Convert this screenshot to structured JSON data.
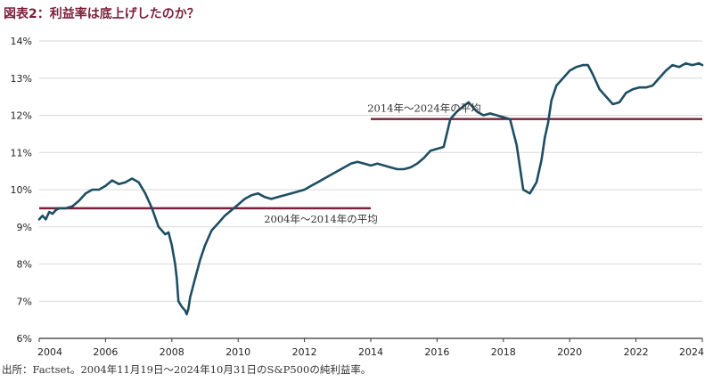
{
  "title": "図表2：利益率は底上げしたのか？",
  "source": "出所：Factset。2004年11月19日～2024年10月31日のS&P500の純利益率。",
  "colors": {
    "series": "#1d4e63",
    "average": "#7b1f3a",
    "grid": "#d9d9d9",
    "axis": "#333333"
  },
  "chart_data": {
    "type": "line",
    "title": "図表2：利益率は底上げしたのか？",
    "xlabel": "",
    "ylabel": "",
    "xlim": [
      2004,
      2024
    ],
    "ylim": [
      6,
      14
    ],
    "grid": "horizontal",
    "x_ticks": [
      "2004",
      "2006",
      "2008",
      "2010",
      "2012",
      "2014",
      "2016",
      "2018",
      "2020",
      "2022",
      "2024"
    ],
    "y_ticks": [
      "6%",
      "7%",
      "8%",
      "9%",
      "10%",
      "11%",
      "12%",
      "13%",
      "14%"
    ],
    "series": [
      {
        "values_x": [
          2004.0,
          2004.1,
          2004.2,
          2004.3,
          2004.4,
          2004.5,
          2004.6,
          2004.8,
          2005.0,
          2005.2,
          2005.4,
          2005.6,
          2005.8,
          2006.0,
          2006.2,
          2006.4,
          2006.6,
          2006.8,
          2007.0,
          2007.2,
          2007.4,
          2007.6,
          2007.8,
          2007.9,
          2008.0,
          2008.1,
          2008.15,
          2008.2,
          2008.3,
          2008.4,
          2008.45,
          2008.5,
          2008.55,
          2008.7,
          2008.85,
          2009.0,
          2009.2,
          2009.4,
          2009.6,
          2009.8,
          2010.0,
          2010.2,
          2010.4,
          2010.6,
          2010.8,
          2011.0,
          2011.2,
          2011.4,
          2011.6,
          2011.8,
          2012.0,
          2012.2,
          2012.4,
          2012.6,
          2012.8,
          2013.0,
          2013.2,
          2013.4,
          2013.6,
          2013.8,
          2014.0,
          2014.2,
          2014.4,
          2014.6,
          2014.8,
          2015.0,
          2015.2,
          2015.4,
          2015.6,
          2015.8,
          2016.0,
          2016.2,
          2016.4,
          2016.6,
          2016.8,
          2016.95,
          2017.0,
          2017.2,
          2017.4,
          2017.6,
          2017.8,
          2018.0,
          2018.2,
          2018.4,
          2018.6,
          2018.8,
          2019.0,
          2019.15,
          2019.25,
          2019.35,
          2019.45,
          2019.6,
          2019.8,
          2020.0,
          2020.2,
          2020.4,
          2020.55,
          2020.7,
          2020.9,
          2021.1,
          2021.3,
          2021.5,
          2021.7,
          2021.9,
          2022.1,
          2022.3,
          2022.5,
          2022.7,
          2022.9,
          2023.1,
          2023.3,
          2023.5,
          2023.7,
          2023.9,
          2024.0
        ],
        "values_y": [
          9.2,
          9.3,
          9.2,
          9.4,
          9.35,
          9.45,
          9.5,
          9.5,
          9.55,
          9.7,
          9.9,
          10.0,
          10.0,
          10.1,
          10.25,
          10.15,
          10.2,
          10.3,
          10.2,
          9.9,
          9.5,
          9.0,
          8.8,
          8.85,
          8.5,
          8.0,
          7.6,
          7.0,
          6.85,
          6.75,
          6.65,
          6.8,
          7.1,
          7.6,
          8.1,
          8.5,
          8.9,
          9.1,
          9.3,
          9.45,
          9.6,
          9.75,
          9.85,
          9.9,
          9.8,
          9.75,
          9.8,
          9.85,
          9.9,
          9.95,
          10.0,
          10.1,
          10.2,
          10.3,
          10.4,
          10.5,
          10.6,
          10.7,
          10.75,
          10.7,
          10.65,
          10.7,
          10.65,
          10.6,
          10.55,
          10.55,
          10.6,
          10.7,
          10.85,
          11.05,
          11.1,
          11.15,
          11.9,
          12.1,
          12.25,
          12.35,
          12.3,
          12.1,
          12.0,
          12.05,
          12.0,
          11.95,
          11.9,
          11.2,
          10.0,
          9.9,
          10.2,
          10.8,
          11.4,
          11.8,
          12.4,
          12.8,
          13.0,
          13.2,
          13.3,
          13.35,
          13.35,
          13.1,
          12.7,
          12.5,
          12.3,
          12.35,
          12.6,
          12.7,
          12.75,
          12.75,
          12.8,
          13.0,
          13.2,
          13.35,
          13.3,
          13.4,
          13.35,
          13.4,
          13.35
        ],
        "name": ""
      }
    ],
    "reference_lines": [
      {
        "label": "2004年～2014年の平均",
        "x_start": 2004,
        "x_end": 2014,
        "y": 9.5
      },
      {
        "label": "2014年～2024年の平均",
        "x_start": 2014,
        "x_end": 2024,
        "y": 11.9
      }
    ]
  }
}
